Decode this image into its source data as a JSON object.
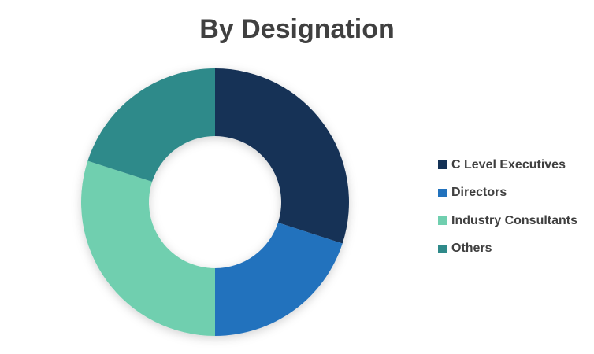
{
  "chart_data": {
    "type": "pie",
    "subtype": "donut",
    "title": "By Designation",
    "categories": [
      "C Level Executives",
      "Directors",
      "Industry Consultants",
      "Others"
    ],
    "values": [
      30,
      20,
      30,
      20
    ],
    "colors": [
      "#143256",
      "#2272bd",
      "#70cfaf",
      "#2f8a8a"
    ],
    "legend_position": "right"
  }
}
